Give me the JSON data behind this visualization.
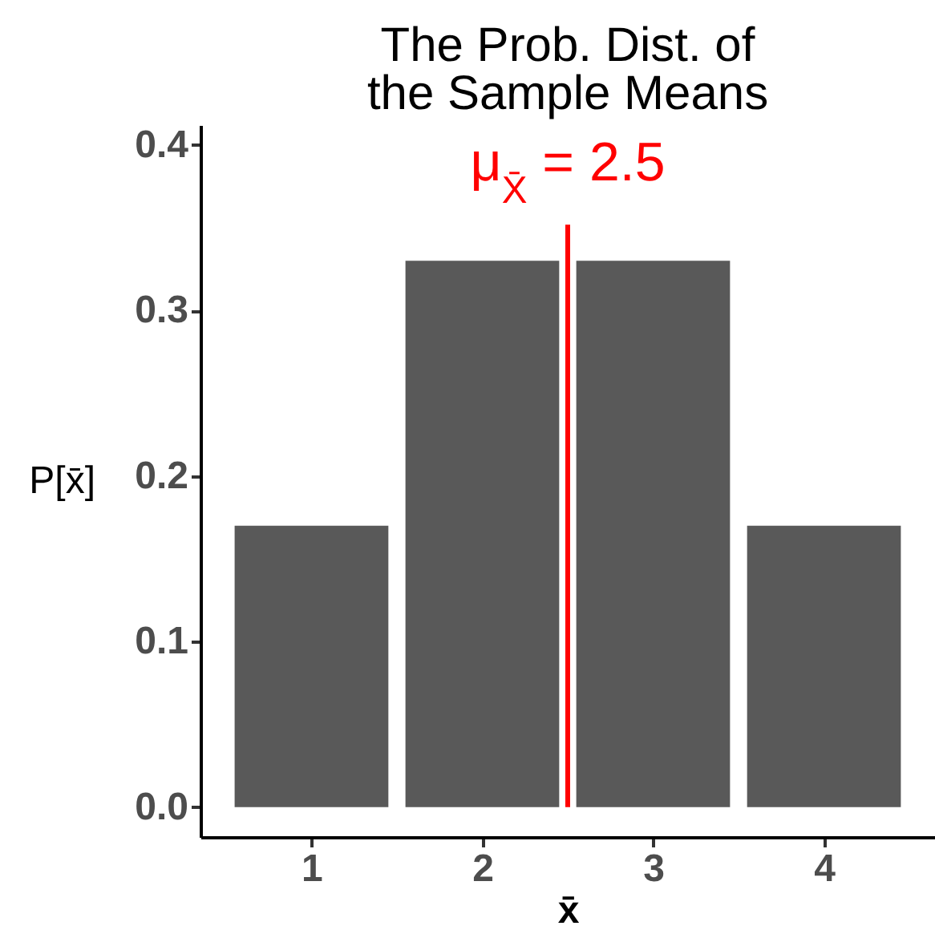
{
  "chart_data": {
    "type": "bar",
    "title": "The Prob. Dist. of\nthe Sample Means",
    "xlabel": "x̄",
    "ylabel": "P[x̄]",
    "x": [
      1,
      2,
      3,
      4
    ],
    "values": [
      0.17,
      0.33,
      0.33,
      0.17
    ],
    "color": "#595959",
    "xlim": [
      0.35,
      4.65
    ],
    "xticks": [
      1,
      2,
      3,
      4
    ],
    "ylim": [
      -0.018,
      0.412
    ],
    "yticks": [
      {
        "value": 0,
        "label": "0.0"
      },
      0.1,
      0.2,
      0.3,
      0.4
    ],
    "ref_lines": [
      {
        "axis": "x",
        "value": 2.5,
        "label": "μ$_{X̄}$ = 2.5",
        "color": "#ff0000"
      }
    ],
    "grid": false
  }
}
